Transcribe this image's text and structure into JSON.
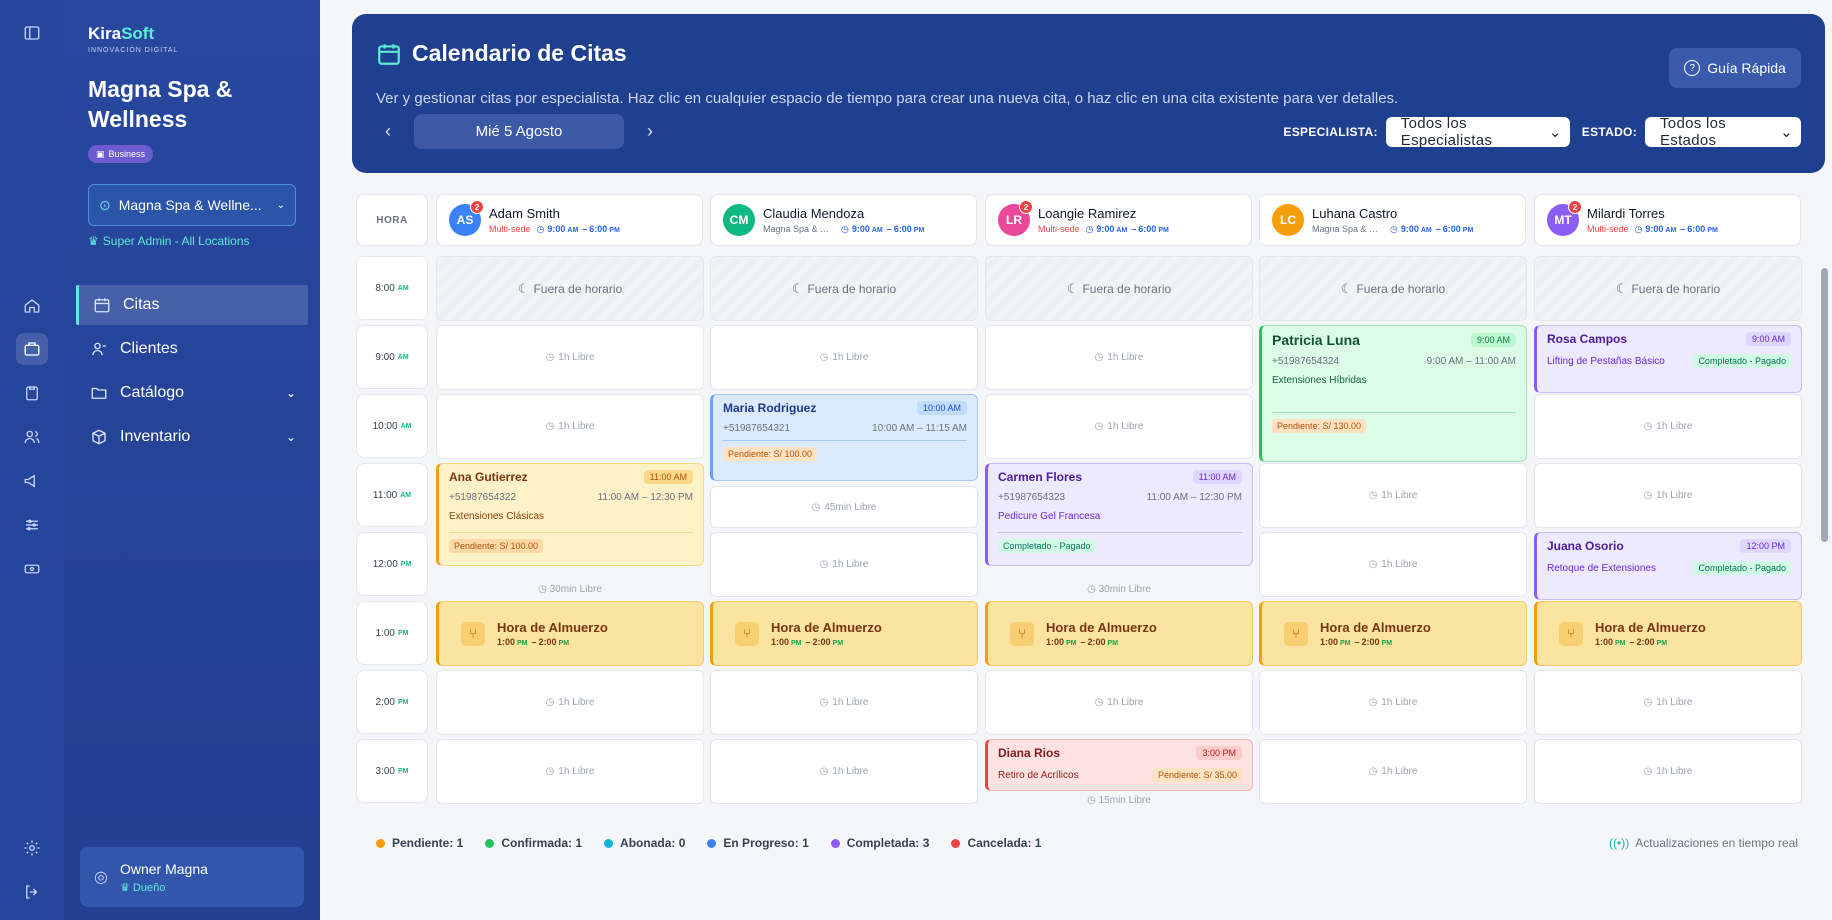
{
  "brand": {
    "name_a": "Kira",
    "name_b": "Soft",
    "tagline": "INNOVACIÓN DIGITAL"
  },
  "business": {
    "name": "Magna Spa & Wellness",
    "plan": "Business",
    "location": "Magna Spa & Wellne...",
    "role": "Super Admin - All Locations"
  },
  "nav": [
    {
      "label": "Citas",
      "icon": "calendar-icon"
    },
    {
      "label": "Clientes",
      "icon": "users-icon"
    },
    {
      "label": "Catálogo",
      "icon": "folder-icon"
    },
    {
      "label": "Inventario",
      "icon": "box-icon"
    }
  ],
  "user": {
    "name": "Owner Magna",
    "role": "Dueño"
  },
  "header": {
    "title": "Calendario de Citas",
    "description": "Ver y gestionar citas por especialista. Haz clic en cualquier espacio de tiempo para crear una nueva cita, o haz clic en una cita existente para ver detalles.",
    "guide": "Guía Rápida",
    "date": "Mié 5 Agosto",
    "specialist_label": "ESPECIALISTA:",
    "specialist_value": "Todos los Especialistas",
    "status_label": "ESTADO:",
    "status_value": "Todos los Estados"
  },
  "hora_label": "HORA",
  "times": [
    {
      "t": "8:00",
      "p": "AM"
    },
    {
      "t": "9:00",
      "p": "AM"
    },
    {
      "t": "10:00",
      "p": "AM"
    },
    {
      "t": "11:00",
      "p": "AM"
    },
    {
      "t": "12:00",
      "p": "PM"
    },
    {
      "t": "1:00",
      "p": "PM"
    },
    {
      "t": "2:00",
      "p": "PM"
    },
    {
      "t": "3:00",
      "p": "PM"
    }
  ],
  "specialists": [
    {
      "initials": "AS",
      "name": "Adam Smith",
      "badge": "2",
      "sede": "Multi-sede",
      "multi": true,
      "color": "#3b82f6",
      "h1": "9:00",
      "p1": "AM",
      "h2": "6:00",
      "p2": "PM"
    },
    {
      "initials": "CM",
      "name": "Claudia Mendoza",
      "badge": "",
      "sede": "Magna Spa & Wellness",
      "multi": false,
      "color": "#10b981",
      "h1": "9:00",
      "p1": "AM",
      "h2": "6:00",
      "p2": "PM"
    },
    {
      "initials": "LR",
      "name": "Loangie Ramirez",
      "badge": "2",
      "sede": "Multi-sede",
      "multi": true,
      "color": "#ec4899",
      "h1": "9:00",
      "p1": "AM",
      "h2": "6:00",
      "p2": "PM"
    },
    {
      "initials": "LC",
      "name": "Luhana Castro",
      "badge": "",
      "sede": "Magna Spa & Wellness",
      "multi": false,
      "color": "#f59e0b",
      "h1": "9:00",
      "p1": "AM",
      "h2": "6:00",
      "p2": "PM"
    },
    {
      "initials": "MT",
      "name": "Milardi Torres",
      "badge": "2",
      "sede": "Multi-sede",
      "multi": true,
      "color": "#8b5cf6",
      "h1": "9:00",
      "p1": "AM",
      "h2": "6:00",
      "p2": "PM"
    }
  ],
  "off_label": "Fuera de horario",
  "free_1h": "1h Libre",
  "lunch": {
    "title": "Hora de Almuerzo",
    "h1": "1:00",
    "p1": "PM",
    "sep": "–",
    "h2": "2:00",
    "p2": "PM"
  },
  "appointments": {
    "ana": {
      "name": "Ana Gutierrez",
      "time": "11:00 AM",
      "phone": "+51987654322",
      "range": "11:00 AM – 12:30 PM",
      "service": "Extensiones Clásicas",
      "tag": "Pendiente: S/ 100.00",
      "free_after": "30min Libre"
    },
    "maria": {
      "name": "Maria Rodriguez",
      "time": "10:00 AM",
      "phone": "+51987654321",
      "range": "10:00 AM – 11:15 AM",
      "tag": "Pendiente: S/ 100.00",
      "free_after": "45min Libre"
    },
    "carmen": {
      "name": "Carmen Flores",
      "time": "11:00 AM",
      "phone": "+51987654323",
      "range": "11:00 AM – 12:30 PM",
      "service": "Pedicure Gel Francesa",
      "tag": "Completado - Pagado",
      "free_after": "30min Libre"
    },
    "diana": {
      "name": "Diana Rios",
      "time": "3:00 PM",
      "service": "Retiro de Acrílicos",
      "tag": "Pendiente: S/ 35.00",
      "free_after": "15min Libre"
    },
    "patricia": {
      "name": "Patricia Luna",
      "time": "9:00 AM",
      "phone": "+51987654324",
      "range": "9:00 AM – 11:00 AM",
      "service": "Extensiones Híbridas",
      "tag": "Pendiente: S/ 130.00"
    },
    "rosa": {
      "name": "Rosa Campos",
      "time": "9:00 AM",
      "service": "Lifting de Pestañas Básico",
      "tag": "Completado - Pagado"
    },
    "juana": {
      "name": "Juana Osorio",
      "time": "12:00 PM",
      "service": "Retoque de Extensiones",
      "tag": "Completado - Pagado"
    }
  },
  "legend": [
    {
      "label": "Pendiente: 1",
      "color": "#f59e0b"
    },
    {
      "label": "Confirmada: 1",
      "color": "#22c55e"
    },
    {
      "label": "Abonada: 0",
      "color": "#06b6d4"
    },
    {
      "label": "En Progreso: 1",
      "color": "#3b82f6"
    },
    {
      "label": "Completada: 3",
      "color": "#8b5cf6"
    },
    {
      "label": "Cancelada: 1",
      "color": "#ef4444"
    }
  ],
  "realtime": "Actualizaciones en tiempo real"
}
